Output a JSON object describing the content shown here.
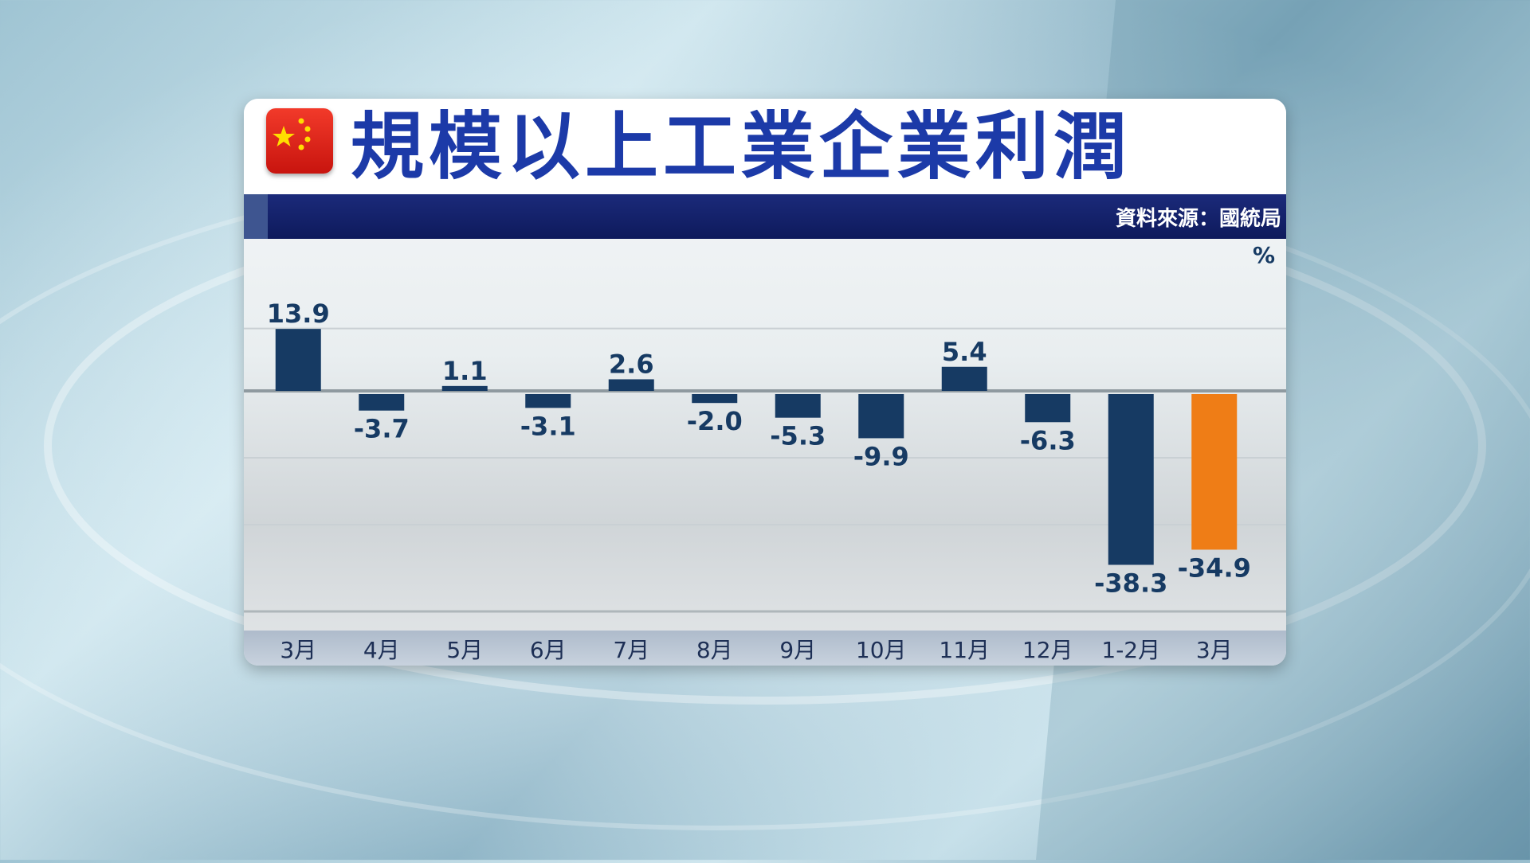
{
  "header": {
    "title": "規模以上工業企業利潤",
    "source": "資料來源：國統局"
  },
  "chart_data": {
    "type": "bar",
    "title": "規模以上工業企業利潤",
    "unit": "%",
    "categories": [
      "3月",
      "4月",
      "5月",
      "6月",
      "7月",
      "8月",
      "9月",
      "10月",
      "11月",
      "12月",
      "1-2月",
      "3月"
    ],
    "values": [
      13.9,
      -3.7,
      1.1,
      -3.1,
      2.6,
      -2.0,
      -5.3,
      -9.9,
      5.4,
      -6.3,
      -38.3,
      -34.9
    ],
    "value_labels": [
      "13.9",
      "-3.7",
      "1.1",
      "-3.1",
      "2.6",
      "-2.0",
      "-5.3",
      "-9.9",
      "5.4",
      "-6.3",
      "-38.3",
      "-34.9"
    ],
    "highlight_index": 11,
    "colors": {
      "bar": "#163a63",
      "highlight": "#ef7d16",
      "label": "#163a63"
    },
    "ylim": [
      -45,
      16
    ],
    "grid": true,
    "legend": "none"
  }
}
